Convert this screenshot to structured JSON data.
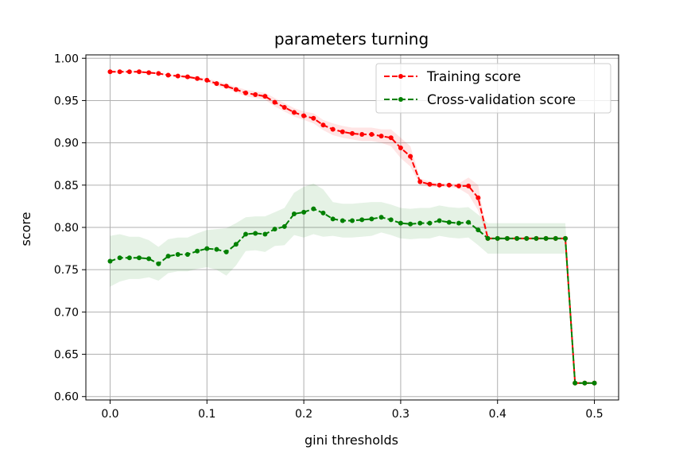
{
  "chart_data": {
    "type": "line",
    "title": "parameters turning",
    "xlabel": "gini thresholds",
    "ylabel": "score",
    "xlim": [
      -0.025,
      0.525
    ],
    "ylim": [
      0.596,
      1.004
    ],
    "xticks": [
      0.0,
      0.1,
      0.2,
      0.3,
      0.4,
      0.5
    ],
    "xtick_labels": [
      "0.0",
      "0.1",
      "0.2",
      "0.3",
      "0.4",
      "0.5"
    ],
    "yticks": [
      0.6,
      0.65,
      0.7,
      0.75,
      0.8,
      0.85,
      0.9,
      0.95,
      1.0
    ],
    "ytick_labels": [
      "0.60",
      "0.65",
      "0.70",
      "0.75",
      "0.80",
      "0.85",
      "0.90",
      "0.95",
      "1.00"
    ],
    "grid": true,
    "legend_position": "top-right",
    "x": [
      0.0,
      0.01,
      0.02,
      0.03,
      0.04,
      0.05,
      0.06,
      0.07,
      0.08,
      0.09,
      0.1,
      0.11,
      0.12,
      0.13,
      0.14,
      0.15,
      0.16,
      0.17,
      0.18,
      0.19,
      0.2,
      0.21,
      0.22,
      0.23,
      0.24,
      0.25,
      0.26,
      0.27,
      0.28,
      0.29,
      0.3,
      0.31,
      0.32,
      0.33,
      0.34,
      0.35,
      0.36,
      0.37,
      0.38,
      0.39,
      0.4,
      0.41,
      0.42,
      0.43,
      0.44,
      0.45,
      0.46,
      0.47,
      0.48,
      0.49,
      0.5
    ],
    "series": [
      {
        "name": "Training score",
        "color": "#ff0000",
        "band_color": "#ff0000",
        "values": [
          0.984,
          0.984,
          0.984,
          0.984,
          0.983,
          0.982,
          0.98,
          0.979,
          0.978,
          0.976,
          0.974,
          0.97,
          0.967,
          0.963,
          0.959,
          0.957,
          0.955,
          0.948,
          0.942,
          0.936,
          0.932,
          0.929,
          0.921,
          0.916,
          0.913,
          0.911,
          0.91,
          0.91,
          0.908,
          0.906,
          0.894,
          0.884,
          0.854,
          0.851,
          0.85,
          0.85,
          0.849,
          0.849,
          0.835,
          0.787,
          0.787,
          0.787,
          0.787,
          0.787,
          0.787,
          0.787,
          0.787,
          0.787,
          0.616,
          0.616,
          0.616
        ],
        "std": [
          0.001,
          0.001,
          0.001,
          0.001,
          0.001,
          0.001,
          0.001,
          0.001,
          0.002,
          0.002,
          0.002,
          0.003,
          0.003,
          0.003,
          0.004,
          0.004,
          0.004,
          0.005,
          0.005,
          0.005,
          0.005,
          0.006,
          0.006,
          0.007,
          0.007,
          0.007,
          0.008,
          0.008,
          0.008,
          0.01,
          0.012,
          0.012,
          0.004,
          0.003,
          0.002,
          0.002,
          0.003,
          0.01,
          0.015,
          0.001,
          0.001,
          0.001,
          0.001,
          0.001,
          0.001,
          0.001,
          0.001,
          0.001,
          0.001,
          0.001,
          0.001
        ]
      },
      {
        "name": "Cross-validation score",
        "color": "#008000",
        "band_color": "#008000",
        "values": [
          0.76,
          0.764,
          0.764,
          0.764,
          0.763,
          0.757,
          0.766,
          0.768,
          0.768,
          0.772,
          0.775,
          0.774,
          0.771,
          0.78,
          0.792,
          0.793,
          0.792,
          0.798,
          0.801,
          0.816,
          0.818,
          0.822,
          0.817,
          0.81,
          0.808,
          0.808,
          0.809,
          0.81,
          0.812,
          0.809,
          0.805,
          0.804,
          0.805,
          0.805,
          0.808,
          0.806,
          0.805,
          0.806,
          0.797,
          0.787,
          0.787,
          0.787,
          0.787,
          0.787,
          0.787,
          0.787,
          0.787,
          0.787,
          0.616,
          0.616,
          0.616
        ],
        "std": [
          0.03,
          0.028,
          0.025,
          0.025,
          0.022,
          0.02,
          0.02,
          0.02,
          0.02,
          0.021,
          0.022,
          0.024,
          0.028,
          0.025,
          0.02,
          0.02,
          0.021,
          0.02,
          0.022,
          0.025,
          0.03,
          0.03,
          0.028,
          0.02,
          0.02,
          0.02,
          0.02,
          0.02,
          0.018,
          0.018,
          0.018,
          0.018,
          0.018,
          0.018,
          0.018,
          0.018,
          0.018,
          0.018,
          0.018,
          0.018,
          0.018,
          0.018,
          0.018,
          0.018,
          0.018,
          0.018,
          0.018,
          0.018,
          0.001,
          0.001,
          0.001
        ]
      }
    ]
  }
}
